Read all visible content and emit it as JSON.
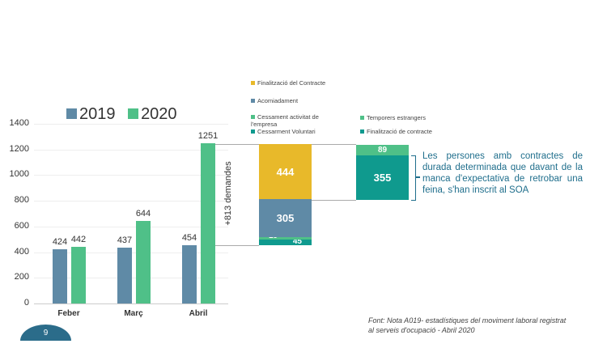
{
  "chart_data": [
    {
      "type": "bar",
      "categories": [
        "Feber",
        "Març",
        "Abril"
      ],
      "series": [
        {
          "name": "2019",
          "values": [
            424,
            437,
            454
          ],
          "color": "#5f8aa6"
        },
        {
          "name": "2020",
          "values": [
            442,
            644,
            1251
          ],
          "color": "#4fc088"
        }
      ],
      "ylim": [
        0,
        1400
      ],
      "yticks": [
        0,
        200,
        400,
        600,
        800,
        1000,
        1200,
        1400
      ],
      "grid": true,
      "legend": "top",
      "annotation": "+813 demandes"
    },
    {
      "type": "bar",
      "stacked": true,
      "bars": [
        {
          "segments": [
            {
              "name": "Cessarment Voluntari",
              "value": 45,
              "color": "#0f9a8e"
            },
            {
              "name": "Cessament activitat de l'empresa",
              "value": 19,
              "color": "#4fc088"
            },
            {
              "name": "Acomiadament",
              "value": 305,
              "color": "#5f8aa6"
            },
            {
              "name": "Finalització del Contracte",
              "value": 444,
              "color": "#e8b92a"
            }
          ]
        },
        {
          "segments": [
            {
              "name": "Finalització de contracte",
              "value": 355,
              "color": "#0f9a8e"
            },
            {
              "name": "Temporers estrangers",
              "value": 89,
              "color": "#4fc088"
            }
          ]
        }
      ]
    }
  ],
  "note": "Les persones amb contractes de durada determinada que davant de la manca d'expectativa de retrobar una feina, s'han inscrit al SOA",
  "source": "Font: Nota A019- estadístiques del moviment laboral registrat al serveis d'ocupació - Abril 2020",
  "page_number": "9"
}
